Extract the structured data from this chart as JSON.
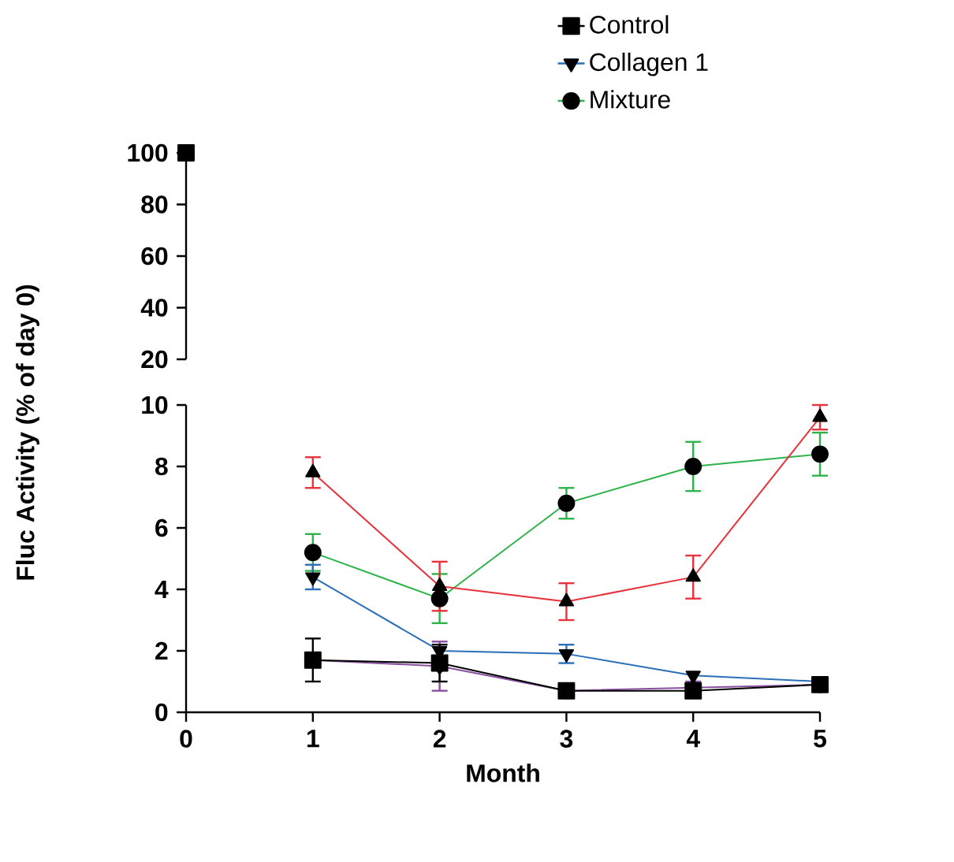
{
  "chart_data": [
    {
      "type": "line",
      "x": [
        0
      ],
      "xlim": [
        0,
        5
      ],
      "ylim": [
        20,
        100
      ],
      "yticks": [
        20,
        40,
        60,
        80,
        100
      ],
      "tick_labels": "y",
      "line_style": "solid",
      "series": [
        {
          "color": "#000000",
          "marker": "square",
          "values": [
            100
          ]
        }
      ]
    },
    {
      "type": "line",
      "x": [
        1,
        2,
        3,
        4,
        5
      ],
      "xlim": [
        0,
        5
      ],
      "xticks": [
        0,
        1,
        2,
        3,
        4,
        5
      ],
      "ylim": [
        0,
        10
      ],
      "yticks": [
        0,
        2,
        4,
        6,
        8,
        10
      ],
      "xlabel": "Month",
      "ylabel": "Fluc Activity (% of day 0)",
      "legend": "top right",
      "line_style": "solid",
      "series": [
        {
          "name": "Control",
          "color": "#000000",
          "marker": "square",
          "values": [
            1.7,
            1.6,
            0.7,
            0.7,
            0.9
          ],
          "errors": [
            0.7,
            0.6,
            0.2,
            0.2,
            null
          ]
        },
        {
          "color": "#e8323c",
          "marker": "triangle",
          "values": [
            7.8,
            4.1,
            3.6,
            4.4,
            9.6
          ],
          "errors": [
            0.5,
            0.8,
            0.6,
            0.7,
            0.4
          ]
        },
        {
          "name": "Collagen 1",
          "color": "#2a6fb8",
          "marker": "triangle-down",
          "values": [
            4.4,
            2.0,
            1.9,
            1.2,
            1.0
          ],
          "errors": [
            0.4,
            null,
            0.3,
            null,
            null
          ]
        },
        {
          "color": "#8a4fa0",
          "marker": "diamond",
          "values": [
            1.7,
            1.5,
            0.7,
            0.8,
            0.9
          ],
          "errors": [
            null,
            0.8,
            0.2,
            0.2,
            null
          ]
        },
        {
          "name": "Mixture",
          "color": "#2db34a",
          "marker": "circle",
          "values": [
            5.2,
            3.7,
            6.8,
            8.0,
            8.4
          ],
          "errors": [
            0.6,
            0.8,
            0.5,
            0.8,
            0.7
          ]
        }
      ]
    }
  ]
}
